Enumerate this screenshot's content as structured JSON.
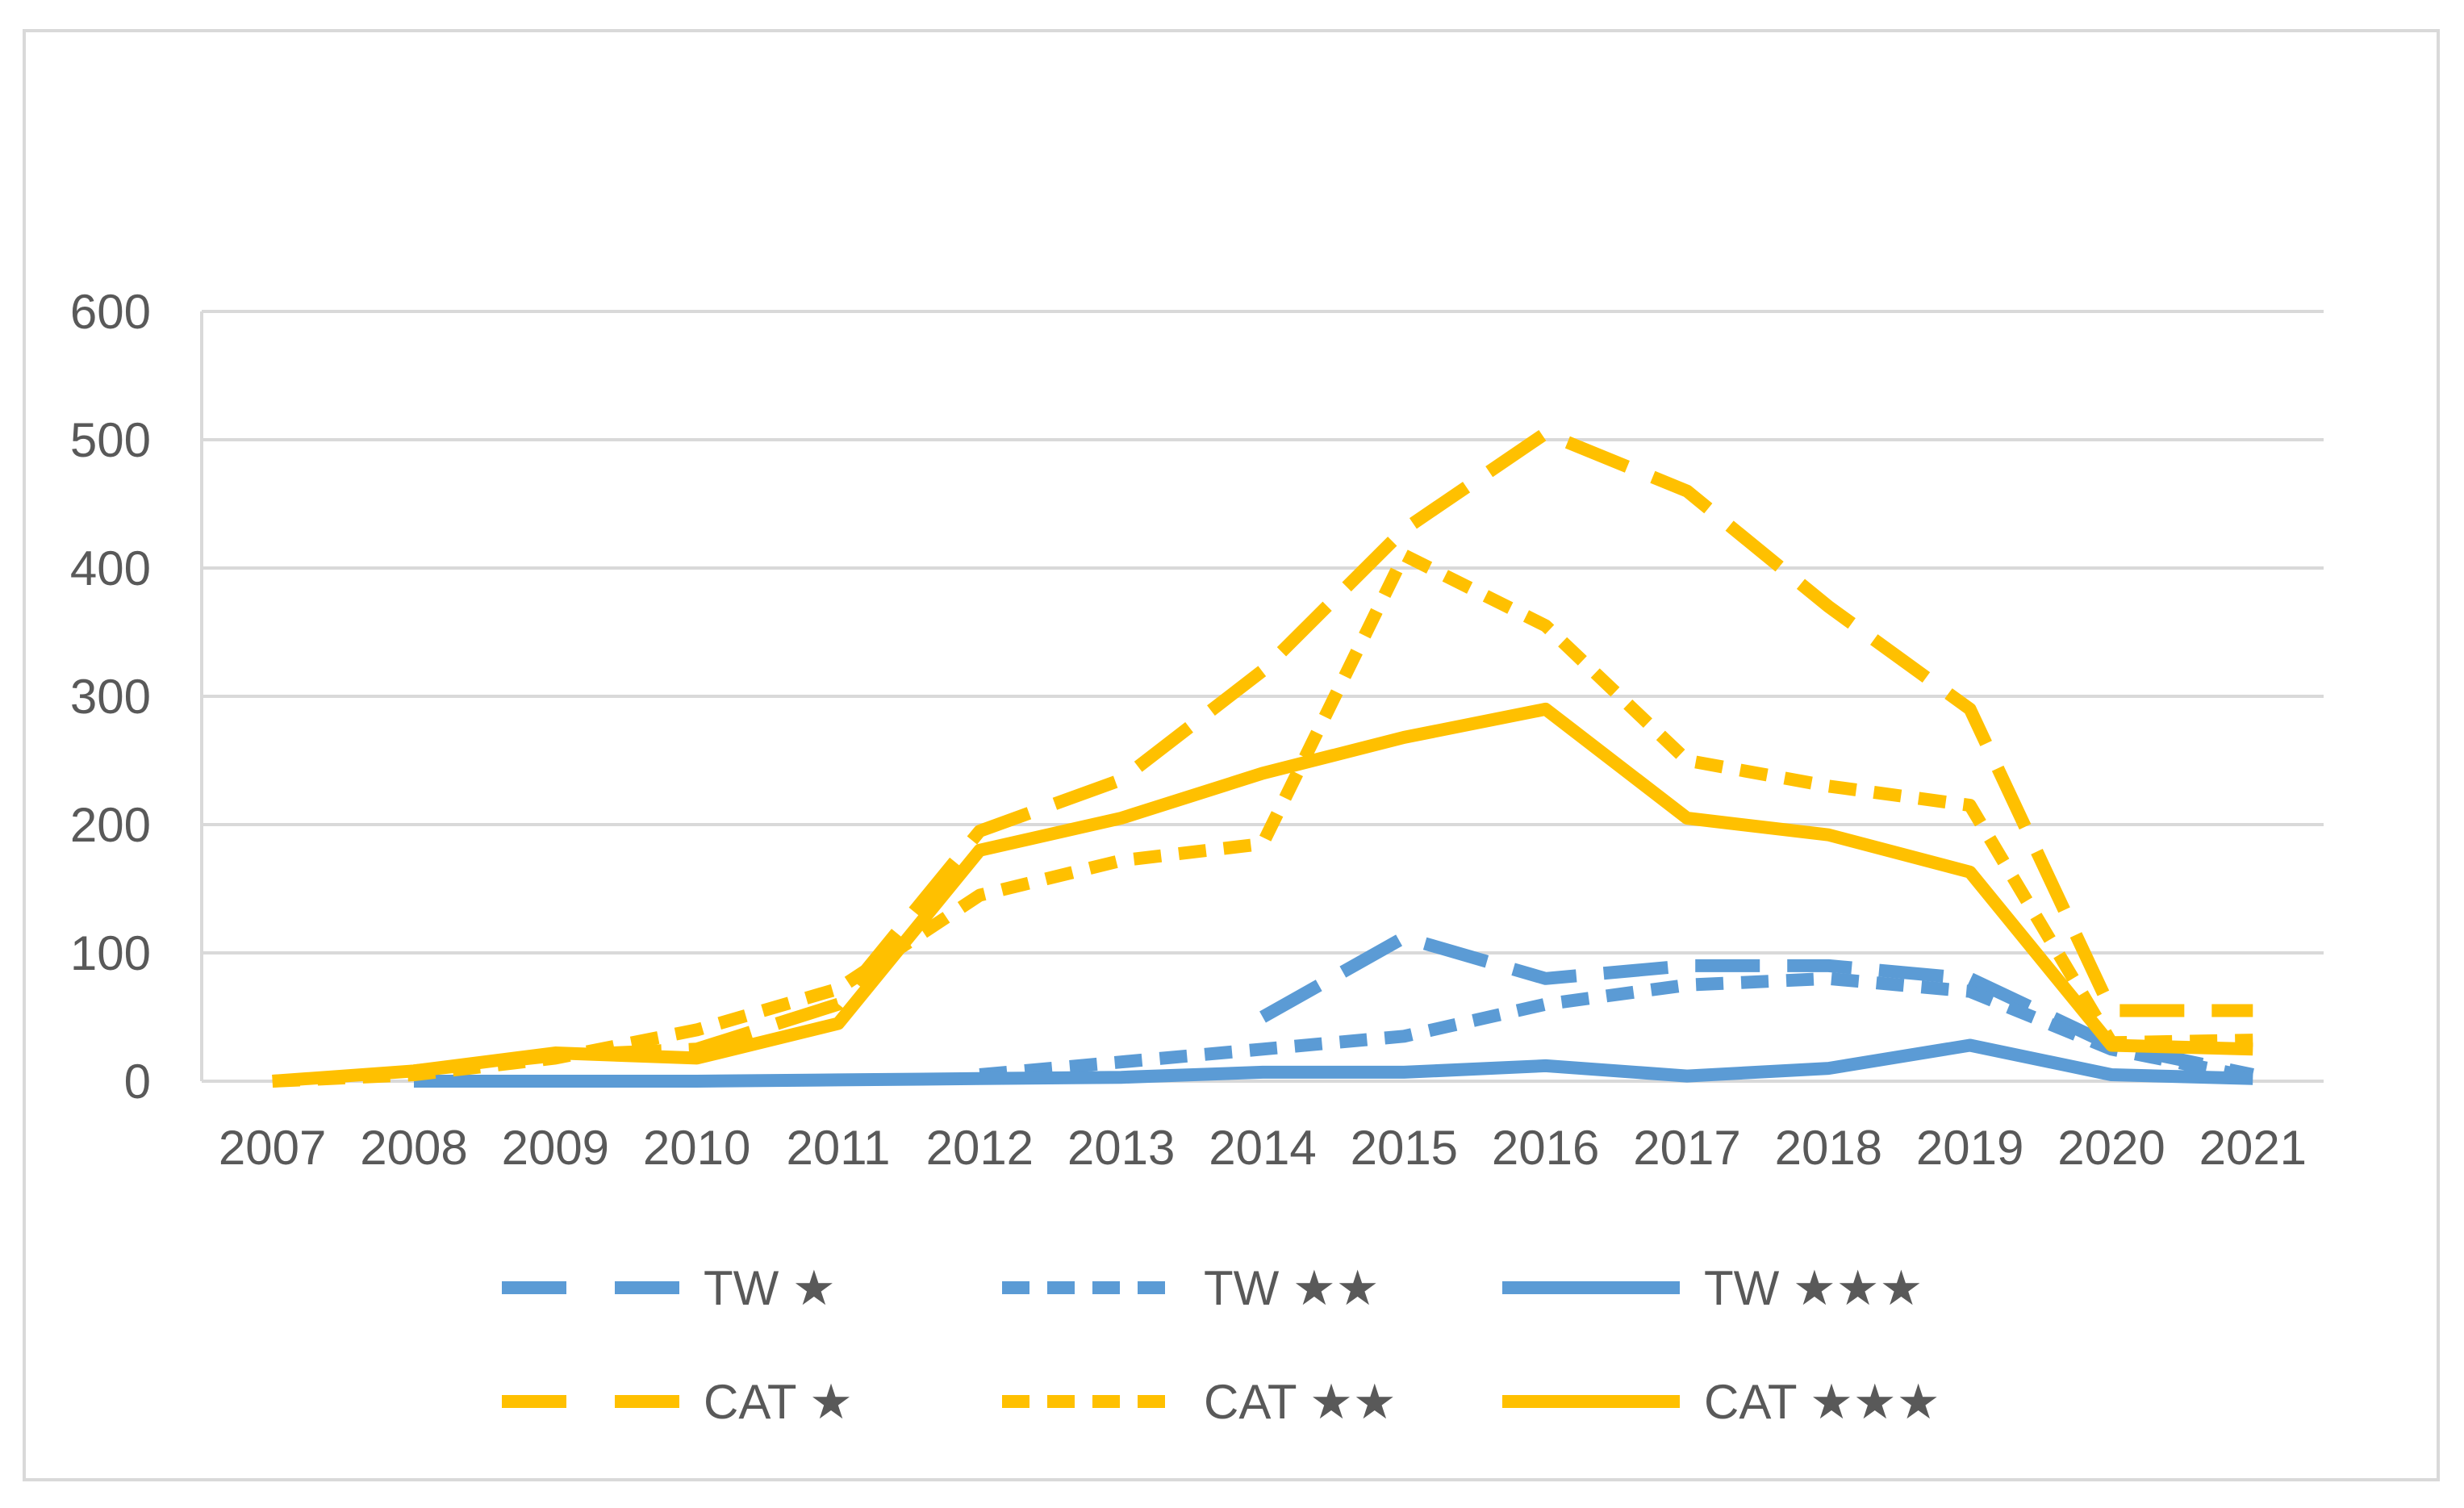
{
  "chart_data": {
    "type": "line",
    "title": "",
    "xlabel": "",
    "ylabel": "",
    "ylim": [
      0,
      600
    ],
    "yticks": [
      0,
      100,
      200,
      300,
      400,
      500,
      600
    ],
    "grid": true,
    "legend_position": "bottom",
    "categories": [
      "2007",
      "2008",
      "2009",
      "2010",
      "2011",
      "2012",
      "2013",
      "2014",
      "2015",
      "2016",
      "2017",
      "2018",
      "2019",
      "2020",
      "2021"
    ],
    "series": [
      {
        "name": "TW ★",
        "color": "#5b9bd5",
        "dash": "long-dash",
        "values": [
          null,
          null,
          null,
          null,
          null,
          null,
          null,
          50,
          112,
          80,
          90,
          90,
          80,
          28,
          5
        ]
      },
      {
        "name": "TW ★★",
        "color": "#5b9bd5",
        "dash": "dash",
        "values": [
          null,
          null,
          null,
          null,
          null,
          5,
          15,
          25,
          35,
          60,
          75,
          80,
          70,
          25,
          3
        ]
      },
      {
        "name": "TW ★★★",
        "color": "#5b9bd5",
        "dash": "solid",
        "values": [
          null,
          0,
          0,
          0,
          1,
          2,
          3,
          7,
          7,
          12,
          4,
          10,
          28,
          5,
          2
        ]
      },
      {
        "name": "CAT ★",
        "color": "#ffc000",
        "dash": "long-dash",
        "values": [
          null,
          8,
          20,
          25,
          60,
          195,
          235,
          320,
          430,
          505,
          460,
          370,
          290,
          55,
          55
        ]
      },
      {
        "name": "CAT ★★",
        "color": "#ffc000",
        "dash": "dash",
        "values": [
          0,
          5,
          18,
          40,
          72,
          145,
          172,
          185,
          410,
          355,
          250,
          230,
          215,
          30,
          32
        ]
      },
      {
        "name": "CAT ★★★",
        "color": "#ffc000",
        "dash": "solid",
        "values": [
          0,
          8,
          22,
          18,
          45,
          180,
          205,
          240,
          268,
          290,
          205,
          192,
          163,
          28,
          25
        ]
      }
    ]
  }
}
